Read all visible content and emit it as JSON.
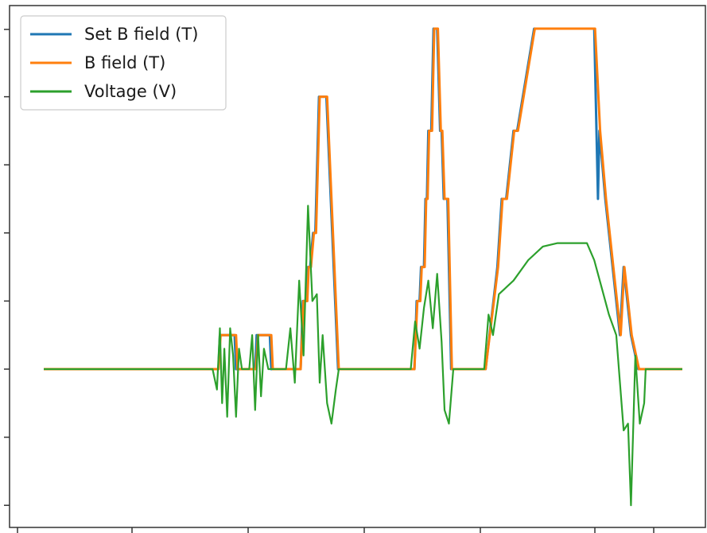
{
  "chart_data": {
    "type": "line",
    "title": "",
    "xlabel": "",
    "ylabel": "",
    "xlim": [
      0,
      1000
    ],
    "ylim": [
      -2.0,
      5.3
    ],
    "legend_position": "top-left",
    "grid": false,
    "series": [
      {
        "name": "Set B field (T)",
        "color": "#1f77b4",
        "x": [
          0,
          238,
          240,
          260,
          262,
          288,
          290,
          308,
          310,
          350,
          353,
          358,
          360,
          363,
          367,
          370,
          375,
          385,
          401,
          403,
          450,
          505,
          508,
          512,
          514,
          518,
          520,
          522,
          524,
          528,
          531,
          536,
          540,
          542,
          545,
          550,
          555,
          558,
          602,
          618,
          624,
          630,
          640,
          645,
          668,
          750,
          755,
          757,
          765,
          775,
          785,
          790,
          800,
          810,
          812,
          870
        ],
        "y": [
          0,
          0,
          0.5,
          0.5,
          0,
          0,
          0.5,
          0.5,
          0,
          0,
          1.0,
          1.0,
          1.5,
          1.5,
          2.0,
          2.0,
          4.0,
          4.0,
          0,
          0,
          0,
          0,
          1.0,
          1.0,
          1.5,
          1.5,
          2.5,
          2.5,
          3.5,
          3.5,
          5.0,
          5.0,
          3.5,
          3.5,
          2.5,
          2.5,
          0,
          0,
          0,
          1.5,
          2.5,
          2.5,
          3.5,
          3.5,
          5.0,
          5.0,
          2.5,
          3.5,
          2.5,
          1.5,
          0.5,
          1.5,
          0.5,
          0,
          0,
          0
        ]
      },
      {
        "name": "B field (T)",
        "color": "#ff7f0e",
        "x": [
          0,
          238,
          241,
          262,
          264,
          289,
          292,
          310,
          312,
          350,
          354,
          359,
          361,
          364,
          368,
          371,
          376,
          386,
          402,
          404,
          450,
          505,
          509,
          513,
          515,
          519,
          521,
          523,
          525,
          529,
          532,
          537,
          541,
          543,
          546,
          551,
          556,
          559,
          602,
          619,
          625,
          631,
          641,
          646,
          669,
          751,
          758,
          766,
          776,
          786,
          791,
          801,
          811,
          813,
          870
        ],
        "y": [
          0,
          0,
          0.5,
          0.5,
          0,
          0,
          0.5,
          0.5,
          0,
          0,
          1.0,
          1.0,
          1.5,
          1.5,
          2.0,
          2.0,
          4.0,
          4.0,
          0,
          0,
          0,
          0,
          1.0,
          1.0,
          1.5,
          1.5,
          2.5,
          2.5,
          3.5,
          3.5,
          5.0,
          5.0,
          3.5,
          3.5,
          2.5,
          2.5,
          0,
          0,
          0,
          1.5,
          2.5,
          2.5,
          3.5,
          3.5,
          5.0,
          5.0,
          3.5,
          2.5,
          1.5,
          0.5,
          1.5,
          0.5,
          0,
          0,
          0
        ]
      },
      {
        "name": "Voltage (V)",
        "color": "#2ca02c",
        "x": [
          0,
          230,
          236,
          240,
          243,
          246,
          250,
          254,
          258,
          262,
          266,
          270,
          280,
          284,
          288,
          292,
          296,
          300,
          306,
          330,
          336,
          342,
          348,
          354,
          360,
          366,
          372,
          376,
          380,
          386,
          392,
          398,
          402,
          408,
          450,
          500,
          506,
          512,
          518,
          524,
          530,
          536,
          542,
          546,
          552,
          558,
          600,
          606,
          612,
          620,
          640,
          660,
          680,
          700,
          720,
          740,
          750,
          760,
          770,
          780,
          790,
          796,
          800,
          806,
          812,
          818,
          820,
          830,
          870
        ],
        "y": [
          0,
          0,
          -0.3,
          0.6,
          -0.5,
          0.3,
          -0.7,
          0.6,
          0.2,
          -0.7,
          0.3,
          0,
          0,
          0.5,
          -0.6,
          0.5,
          -0.4,
          0.3,
          0,
          0,
          0.6,
          -0.2,
          1.3,
          0.2,
          2.4,
          1.0,
          1.1,
          -0.2,
          0.5,
          -0.5,
          -0.8,
          -0.3,
          0,
          0,
          0,
          0,
          0.7,
          0.3,
          0.9,
          1.3,
          0.6,
          1.4,
          0.4,
          -0.6,
          -0.8,
          0,
          0,
          0.8,
          0.5,
          1.1,
          1.3,
          1.6,
          1.8,
          1.85,
          1.85,
          1.85,
          1.6,
          1.2,
          0.8,
          0.5,
          -0.9,
          -0.8,
          -2.0,
          0.2,
          -0.8,
          -0.5,
          0,
          0,
          0
        ]
      }
    ]
  }
}
